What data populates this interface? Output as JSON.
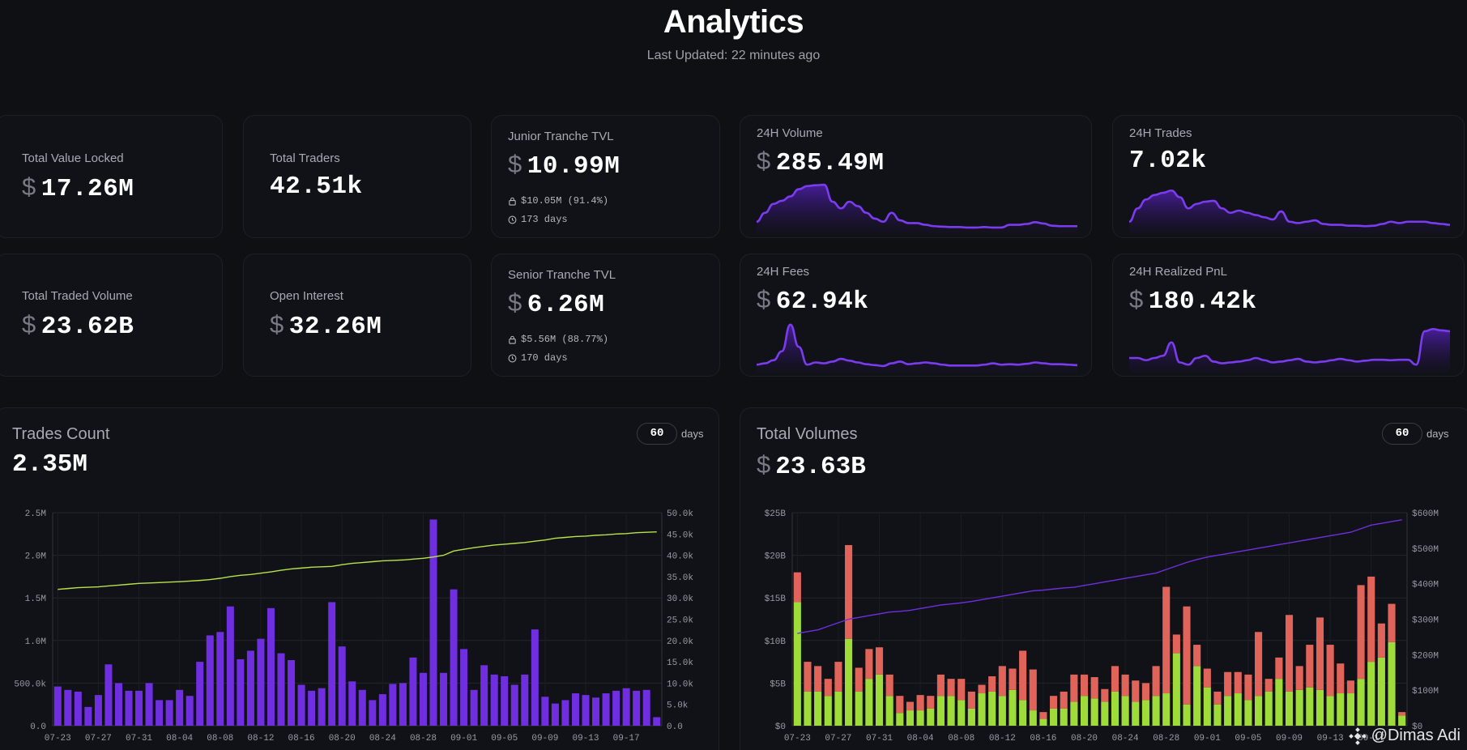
{
  "header": {
    "title": "Analytics",
    "subtitle": "Last Updated: 22 minutes ago"
  },
  "currency_symbol": "$",
  "stats": {
    "tvl": {
      "label": "Total Value Locked",
      "value": "17.26M"
    },
    "traders": {
      "label": "Total Traders",
      "value": "42.51k"
    },
    "traded_volume": {
      "label": "Total Traded Volume",
      "value": "23.62B"
    },
    "open_interest": {
      "label": "Open Interest",
      "value": "32.26M"
    },
    "junior": {
      "label": "Junior Tranche TVL",
      "value": "10.99M",
      "locked": "$10.05M (91.4%)",
      "days": "173 days"
    },
    "senior": {
      "label": "Senior Tranche TVL",
      "value": "6.26M",
      "locked": "$5.56M (88.77%)",
      "days": "170 days"
    },
    "volume24": {
      "label": "24H Volume",
      "value": "285.49M",
      "spark": [
        0.15,
        0.35,
        0.55,
        0.62,
        0.72,
        0.88,
        0.95,
        0.97,
        0.98,
        0.6,
        0.45,
        0.6,
        0.5,
        0.35,
        0.22,
        0.15,
        0.35,
        0.18,
        0.12,
        0.12,
        0.08,
        0.05,
        0.04,
        0.03,
        0.03,
        0.02,
        0.02,
        0.03,
        0.02,
        0.02,
        0.08,
        0.08,
        0.1,
        0.14,
        0.11,
        0.06,
        0.05,
        0.05,
        0.05
      ]
    },
    "trades24": {
      "label": "24H Trades",
      "value": "7.02k",
      "spark": [
        0.15,
        0.45,
        0.65,
        0.75,
        0.8,
        0.85,
        0.7,
        0.45,
        0.55,
        0.6,
        0.62,
        0.45,
        0.35,
        0.4,
        0.35,
        0.3,
        0.25,
        0.2,
        0.38,
        0.15,
        0.12,
        0.15,
        0.18,
        0.1,
        0.08,
        0.08,
        0.06,
        0.06,
        0.05,
        0.06,
        0.1,
        0.15,
        0.12,
        0.15,
        0.15,
        0.15,
        0.12,
        0.1,
        0.08
      ]
    },
    "fees24": {
      "label": "24H Fees",
      "value": "62.94k",
      "spark": [
        0.05,
        0.08,
        0.15,
        0.35,
        0.95,
        0.45,
        0.05,
        0.1,
        0.08,
        0.12,
        0.18,
        0.14,
        0.1,
        0.06,
        0.04,
        0.02,
        0.08,
        0.12,
        0.06,
        0.08,
        0.1,
        0.08,
        0.05,
        0.03,
        0.03,
        0.03,
        0.03,
        0.05,
        0.08,
        0.05,
        0.06,
        0.05,
        0.07,
        0.1,
        0.08,
        0.06,
        0.06,
        0.05,
        0.04
      ]
    },
    "pnl24": {
      "label": "24H Realized PnL",
      "value": "180.42k",
      "spark": [
        0.2,
        0.2,
        0.15,
        0.2,
        0.25,
        0.55,
        0.1,
        0.05,
        0.2,
        0.25,
        0.12,
        0.08,
        0.1,
        0.12,
        0.15,
        0.2,
        0.15,
        0.1,
        0.12,
        0.15,
        0.18,
        0.12,
        0.1,
        0.12,
        0.15,
        0.18,
        0.15,
        0.12,
        0.14,
        0.16,
        0.16,
        0.15,
        0.16,
        0.16,
        0.05,
        0.8,
        0.85,
        0.82,
        0.8
      ]
    }
  },
  "trades_chart": {
    "title": "Trades Count",
    "total": "2.35M",
    "days": "60",
    "days_unit": "days"
  },
  "volumes_chart": {
    "title": "Total Volumes",
    "total": "23.63B",
    "days": "60",
    "days_unit": "days"
  },
  "watermark": {
    "text": "@Dimas Adi"
  },
  "colors": {
    "purple": "#6f2fe0",
    "line_purple": "#7b3cf0",
    "green": "#9fdc3a",
    "red": "#e0645a",
    "lime_line": "#b7e34a"
  },
  "chart_data": [
    {
      "type": "bar",
      "title": "Trades Count",
      "categories": [
        "07-23",
        "07-24",
        "07-25",
        "07-26",
        "07-27",
        "07-28",
        "07-29",
        "07-30",
        "07-31",
        "08-01",
        "08-02",
        "08-03",
        "08-04",
        "08-05",
        "08-06",
        "08-07",
        "08-08",
        "08-09",
        "08-10",
        "08-11",
        "08-12",
        "08-13",
        "08-14",
        "08-15",
        "08-16",
        "08-17",
        "08-18",
        "08-19",
        "08-20",
        "08-21",
        "08-22",
        "08-23",
        "08-24",
        "08-25",
        "08-26",
        "08-27",
        "08-28",
        "08-29",
        "08-30",
        "08-31",
        "09-01",
        "09-02",
        "09-03",
        "09-04",
        "09-05",
        "09-06",
        "09-07",
        "09-08",
        "09-09",
        "09-10",
        "09-11",
        "09-12",
        "09-13",
        "09-14",
        "09-15",
        "09-16",
        "09-17",
        "09-18",
        "09-19",
        "09-20"
      ],
      "x_tick_labels": [
        "07-23",
        "07-27",
        "07-31",
        "08-04",
        "08-08",
        "08-12",
        "08-16",
        "08-20",
        "08-24",
        "08-28",
        "09-01",
        "09-05",
        "09-09",
        "09-13",
        "09-17"
      ],
      "series": [
        {
          "name": "Trades",
          "axis": "left",
          "values": [
            460000,
            420000,
            400000,
            220000,
            360000,
            720000,
            500000,
            410000,
            410000,
            500000,
            300000,
            300000,
            420000,
            350000,
            750000,
            1060000,
            1100000,
            1400000,
            780000,
            880000,
            1020000,
            1380000,
            850000,
            770000,
            480000,
            410000,
            440000,
            1450000,
            930000,
            520000,
            420000,
            300000,
            370000,
            490000,
            500000,
            800000,
            620000,
            2420000,
            620000,
            1600000,
            900000,
            420000,
            710000,
            600000,
            580000,
            480000,
            600000,
            1130000,
            340000,
            260000,
            300000,
            380000,
            360000,
            330000,
            380000,
            410000,
            440000,
            410000,
            420000,
            100000
          ]
        },
        {
          "name": "Cumulative",
          "axis": "right",
          "type": "line",
          "values": [
            32000,
            32200,
            32400,
            32500,
            32600,
            32800,
            33000,
            33200,
            33400,
            33500,
            33600,
            33700,
            33800,
            33950,
            34100,
            34300,
            34600,
            35000,
            35300,
            35500,
            35800,
            36100,
            36500,
            36800,
            37000,
            37200,
            37300,
            37400,
            37800,
            38100,
            38300,
            38500,
            38700,
            38800,
            38900,
            39100,
            39300,
            39600,
            40000,
            41000,
            41400,
            41800,
            42100,
            42400,
            42600,
            42800,
            43000,
            43300,
            43600,
            44000,
            44200,
            44400,
            44500,
            44700,
            44800,
            45000,
            45100,
            45300,
            45400,
            45500
          ]
        }
      ],
      "ylim": [
        0,
        2500000
      ],
      "y_ticks": [
        "0.0",
        "500.0k",
        "1.0M",
        "1.5M",
        "2.0M",
        "2.5M"
      ],
      "y2lim": [
        0,
        50000
      ],
      "y2_ticks": [
        "0.0",
        "5.0k",
        "10.0k",
        "15.0k",
        "20.0k",
        "25.0k",
        "30.0k",
        "35.0k",
        "40.0k",
        "45.0k",
        "50.0k"
      ]
    },
    {
      "type": "bar",
      "title": "Total Volumes",
      "categories": [
        "07-23",
        "07-24",
        "07-25",
        "07-26",
        "07-27",
        "07-28",
        "07-29",
        "07-30",
        "07-31",
        "08-01",
        "08-02",
        "08-03",
        "08-04",
        "08-05",
        "08-06",
        "08-07",
        "08-08",
        "08-09",
        "08-10",
        "08-11",
        "08-12",
        "08-13",
        "08-14",
        "08-15",
        "08-16",
        "08-17",
        "08-18",
        "08-19",
        "08-20",
        "08-21",
        "08-22",
        "08-23",
        "08-24",
        "08-25",
        "08-26",
        "08-27",
        "08-28",
        "08-29",
        "08-30",
        "08-31",
        "09-01",
        "09-02",
        "09-03",
        "09-04",
        "09-05",
        "09-06",
        "09-07",
        "09-08",
        "09-09",
        "09-10",
        "09-11",
        "09-12",
        "09-13",
        "09-14",
        "09-15",
        "09-16",
        "09-17",
        "09-18",
        "09-19",
        "09-20"
      ],
      "x_tick_labels": [
        "07-23",
        "07-27",
        "07-31",
        "08-04",
        "08-08",
        "08-12",
        "08-16",
        "08-20",
        "08-24",
        "08-28",
        "09-01",
        "09-05",
        "09-09",
        "09-13",
        "09-17"
      ],
      "stacked": true,
      "series": [
        {
          "name": "Long",
          "color": "#9fdc3a",
          "values": [
            14.5,
            4.0,
            4.0,
            3.5,
            4.0,
            10.2,
            4.0,
            5.5,
            6.0,
            3.5,
            1.5,
            1.8,
            1.8,
            2.0,
            3.5,
            3.5,
            3.0,
            2.0,
            3.8,
            4.0,
            3.5,
            4.2,
            3.0,
            1.8,
            0.8,
            2.0,
            2.0,
            2.8,
            3.5,
            3.2,
            2.8,
            4.0,
            3.5,
            2.8,
            3.0,
            3.5,
            3.8,
            8.5,
            2.5,
            7.0,
            4.5,
            2.5,
            3.5,
            3.8,
            3.0,
            3.5,
            4.0,
            5.5,
            4.0,
            4.2,
            4.5,
            4.2,
            3.5,
            3.8,
            3.8,
            5.5,
            7.5,
            8.0,
            9.8,
            1.2
          ]
        },
        {
          "name": "Short",
          "color": "#e0645a",
          "values": [
            3.5,
            3.5,
            3.0,
            2.0,
            3.5,
            11.0,
            2.8,
            3.5,
            3.2,
            2.5,
            2.0,
            1.0,
            1.8,
            1.5,
            2.5,
            2.0,
            2.5,
            2.0,
            1.0,
            1.8,
            3.5,
            2.5,
            5.8,
            4.8,
            0.8,
            1.5,
            2.0,
            3.2,
            2.5,
            2.5,
            1.5,
            3.0,
            2.5,
            2.5,
            2.0,
            3.5,
            12.5,
            2.2,
            11.5,
            2.5,
            2.2,
            1.5,
            2.8,
            2.5,
            3.0,
            7.5,
            1.5,
            2.5,
            9.0,
            2.8,
            5.0,
            8.5,
            6.0,
            3.5,
            1.5,
            11.0,
            10.0,
            4.0,
            4.5,
            0.4
          ]
        },
        {
          "name": "Cumulative",
          "type": "line",
          "axis": "right",
          "color": "#6f2fe0",
          "values": [
            260,
            265,
            270,
            280,
            290,
            300,
            305,
            310,
            315,
            320,
            322,
            325,
            330,
            335,
            340,
            343,
            346,
            350,
            355,
            360,
            365,
            370,
            375,
            380,
            382,
            385,
            388,
            390,
            395,
            400,
            405,
            410,
            415,
            420,
            425,
            430,
            440,
            450,
            460,
            468,
            475,
            480,
            485,
            490,
            495,
            500,
            505,
            510,
            515,
            520,
            525,
            530,
            535,
            540,
            545,
            555,
            565,
            570,
            575,
            580
          ]
        }
      ],
      "ylim": [
        0,
        25
      ],
      "y_ticks": [
        "$0",
        "$5B",
        "$10B",
        "$15B",
        "$20B",
        "$25B"
      ],
      "y2lim": [
        0,
        600
      ],
      "y2_ticks": [
        "$0",
        "$100M",
        "$200M",
        "$300M",
        "$400M",
        "$500M",
        "$600M"
      ]
    }
  ]
}
